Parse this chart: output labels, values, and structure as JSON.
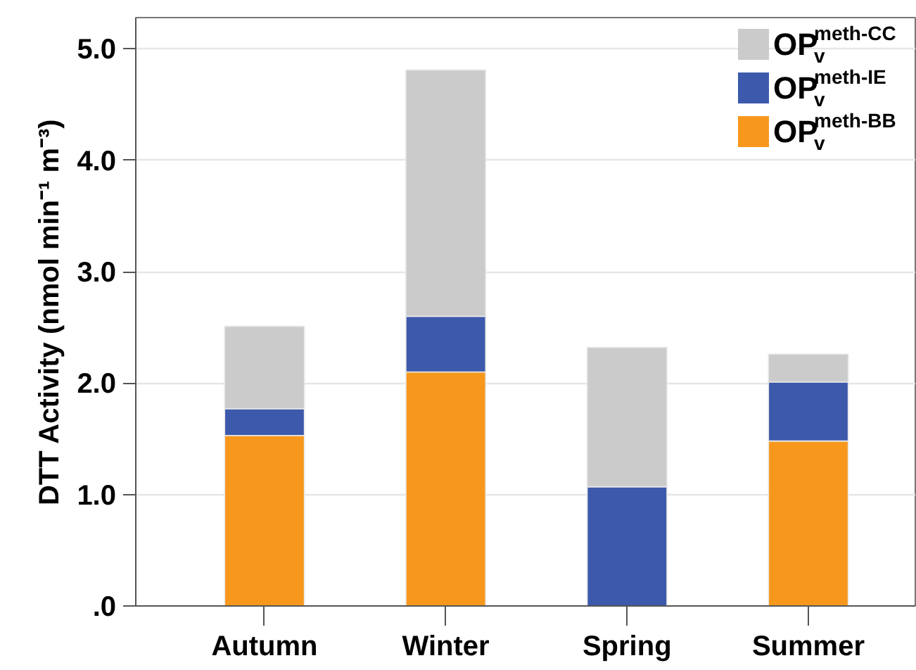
{
  "chart_data": {
    "type": "bar",
    "stacked": true,
    "ylabel": "DTT Activity (nmol min⁻¹ m⁻³)",
    "categories": [
      "Autumn",
      "Winter",
      "Spring",
      "Summer"
    ],
    "series": [
      {
        "name": "OP$^{meth-BB}$$_{v}$",
        "color": "#f7981d",
        "values": [
          1.53,
          2.1,
          null,
          1.48
        ]
      },
      {
        "name": "OP$^{meth-IE}$$_{v}$",
        "color": "#3d59ab",
        "values": [
          0.24,
          0.5,
          1.07,
          0.53
        ]
      },
      {
        "name": "OP$^{meth-CC}$$_{v}$",
        "color": "#cbcbcb",
        "values": [
          0.74,
          2.21,
          1.25,
          0.25
        ]
      }
    ],
    "ylim": [
      0,
      5.28
    ],
    "yticks": [
      {
        "value": 0,
        "label": ".0"
      },
      {
        "value": 1,
        "label": "1.0"
      },
      {
        "value": 2,
        "label": "2.0"
      },
      {
        "value": 3,
        "label": "3.0"
      },
      {
        "value": 4,
        "label": "4.0"
      },
      {
        "value": 5,
        "label": "5.0"
      }
    ],
    "grid": "y",
    "legend": "top right"
  }
}
